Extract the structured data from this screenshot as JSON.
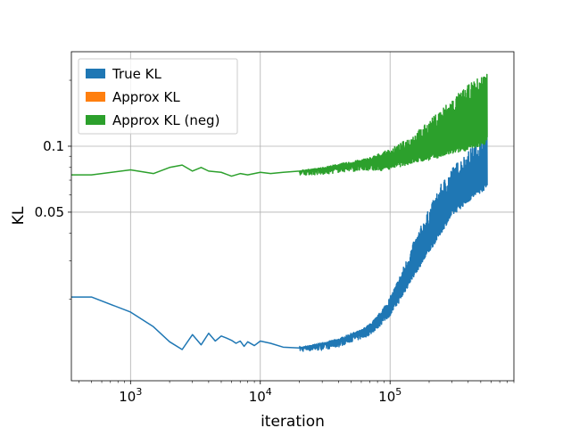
{
  "chart_data": {
    "type": "line",
    "xlabel": "iteration",
    "ylabel": "KL",
    "xscale": "log",
    "yscale": "log",
    "xlim": [
      350,
      900000
    ],
    "ylim": [
      0.0085,
      0.27
    ],
    "grid": true,
    "legend_position": "top-left",
    "x_ticks": [
      {
        "value": 1000,
        "base": "10",
        "exp": "3"
      },
      {
        "value": 10000,
        "base": "10",
        "exp": "4"
      },
      {
        "value": 100000,
        "base": "10",
        "exp": "5"
      }
    ],
    "y_ticks": [
      {
        "value": 0.1,
        "label": "0.1"
      },
      {
        "value": 0.05,
        "label": "0.05"
      }
    ],
    "series": [
      {
        "name": "True KL",
        "color": "#1f77b4",
        "x": [
          350,
          500,
          1000,
          1500,
          2000,
          2500,
          3000,
          3500,
          4000,
          4500,
          5000,
          5500,
          6000,
          6500,
          7000,
          7500,
          8000,
          9000,
          10000,
          12000,
          15000,
          20000,
          30000,
          40000,
          50000,
          60000,
          70000,
          80000,
          100000,
          120000,
          150000,
          200000,
          250000,
          300000,
          400000,
          500000,
          560000
        ],
        "y": [
          0.0205,
          0.0205,
          0.0175,
          0.015,
          0.0128,
          0.0118,
          0.0138,
          0.0124,
          0.014,
          0.0129,
          0.0136,
          0.0133,
          0.013,
          0.0126,
          0.0129,
          0.0122,
          0.0128,
          0.0123,
          0.0129,
          0.0126,
          0.0121,
          0.012,
          0.0122,
          0.0126,
          0.0133,
          0.0137,
          0.0143,
          0.0153,
          0.0175,
          0.0205,
          0.026,
          0.034,
          0.042,
          0.05,
          0.058,
          0.064,
          0.067
        ],
        "y_high": [
          null,
          null,
          null,
          null,
          null,
          null,
          null,
          null,
          null,
          null,
          null,
          null,
          null,
          null,
          null,
          null,
          null,
          null,
          null,
          null,
          null,
          null,
          0.0127,
          0.0132,
          0.014,
          0.0145,
          0.0155,
          0.0168,
          0.0205,
          0.026,
          0.036,
          0.052,
          0.068,
          0.08,
          0.095,
          0.11,
          0.12
        ]
      },
      {
        "name": "Approx KL",
        "color": "#ff7f0e",
        "x": [],
        "y": []
      },
      {
        "name": "Approx KL (neg)",
        "color": "#2ca02c",
        "x": [
          350,
          500,
          1000,
          1500,
          2000,
          2500,
          3000,
          3500,
          4000,
          5000,
          6000,
          7000,
          8000,
          10000,
          12000,
          15000,
          20000,
          30000,
          40000,
          50000,
          60000,
          70000,
          80000,
          100000,
          120000,
          150000,
          200000,
          250000,
          300000,
          400000,
          500000,
          560000
        ],
        "y": [
          0.074,
          0.074,
          0.078,
          0.075,
          0.08,
          0.082,
          0.077,
          0.08,
          0.077,
          0.076,
          0.073,
          0.075,
          0.074,
          0.076,
          0.075,
          0.076,
          0.077,
          0.077,
          0.079,
          0.08,
          0.08,
          0.081,
          0.08,
          0.082,
          0.084,
          0.087,
          0.09,
          0.093,
          0.096,
          0.1,
          0.104,
          0.108
        ],
        "y_high": [
          null,
          null,
          null,
          null,
          null,
          null,
          null,
          null,
          null,
          null,
          null,
          null,
          null,
          null,
          null,
          null,
          null,
          0.08,
          0.083,
          0.085,
          0.087,
          0.089,
          0.092,
          0.097,
          0.103,
          0.113,
          0.13,
          0.15,
          0.165,
          0.19,
          0.21,
          0.22
        ]
      }
    ]
  }
}
